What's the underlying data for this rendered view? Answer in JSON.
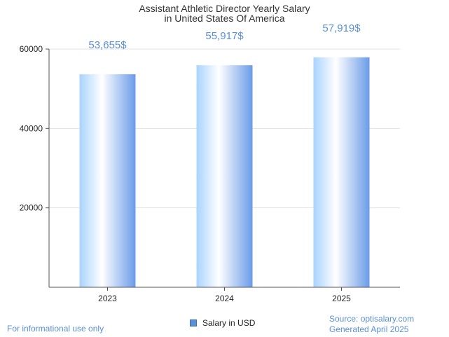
{
  "chart_data": {
    "type": "bar",
    "title_line1": "Assistant Athletic Director Yearly Salary",
    "title_line2": "in United States Of America",
    "categories": [
      "2023",
      "2024",
      "2025"
    ],
    "series": [
      {
        "name": "Salary in USD",
        "values": [
          53655,
          55917,
          57919
        ]
      }
    ],
    "data_labels": [
      "53,655$",
      "55,917$",
      "57,919$"
    ],
    "yticks": [
      "20000",
      "40000",
      "60000"
    ],
    "ytick_values": [
      20000,
      40000,
      60000
    ],
    "ylim": [
      0,
      60000
    ],
    "grid": true,
    "legend_position": "bottom-center"
  },
  "colors": {
    "accent": "#5b8fd6",
    "bar_light": "#ffffff",
    "bar_dark": "#6a9be8",
    "grid": "#e3e3e3"
  },
  "footer": {
    "left": "For informational use only",
    "source": "Source: optisalary.com",
    "generated": "Generated April 2025"
  }
}
